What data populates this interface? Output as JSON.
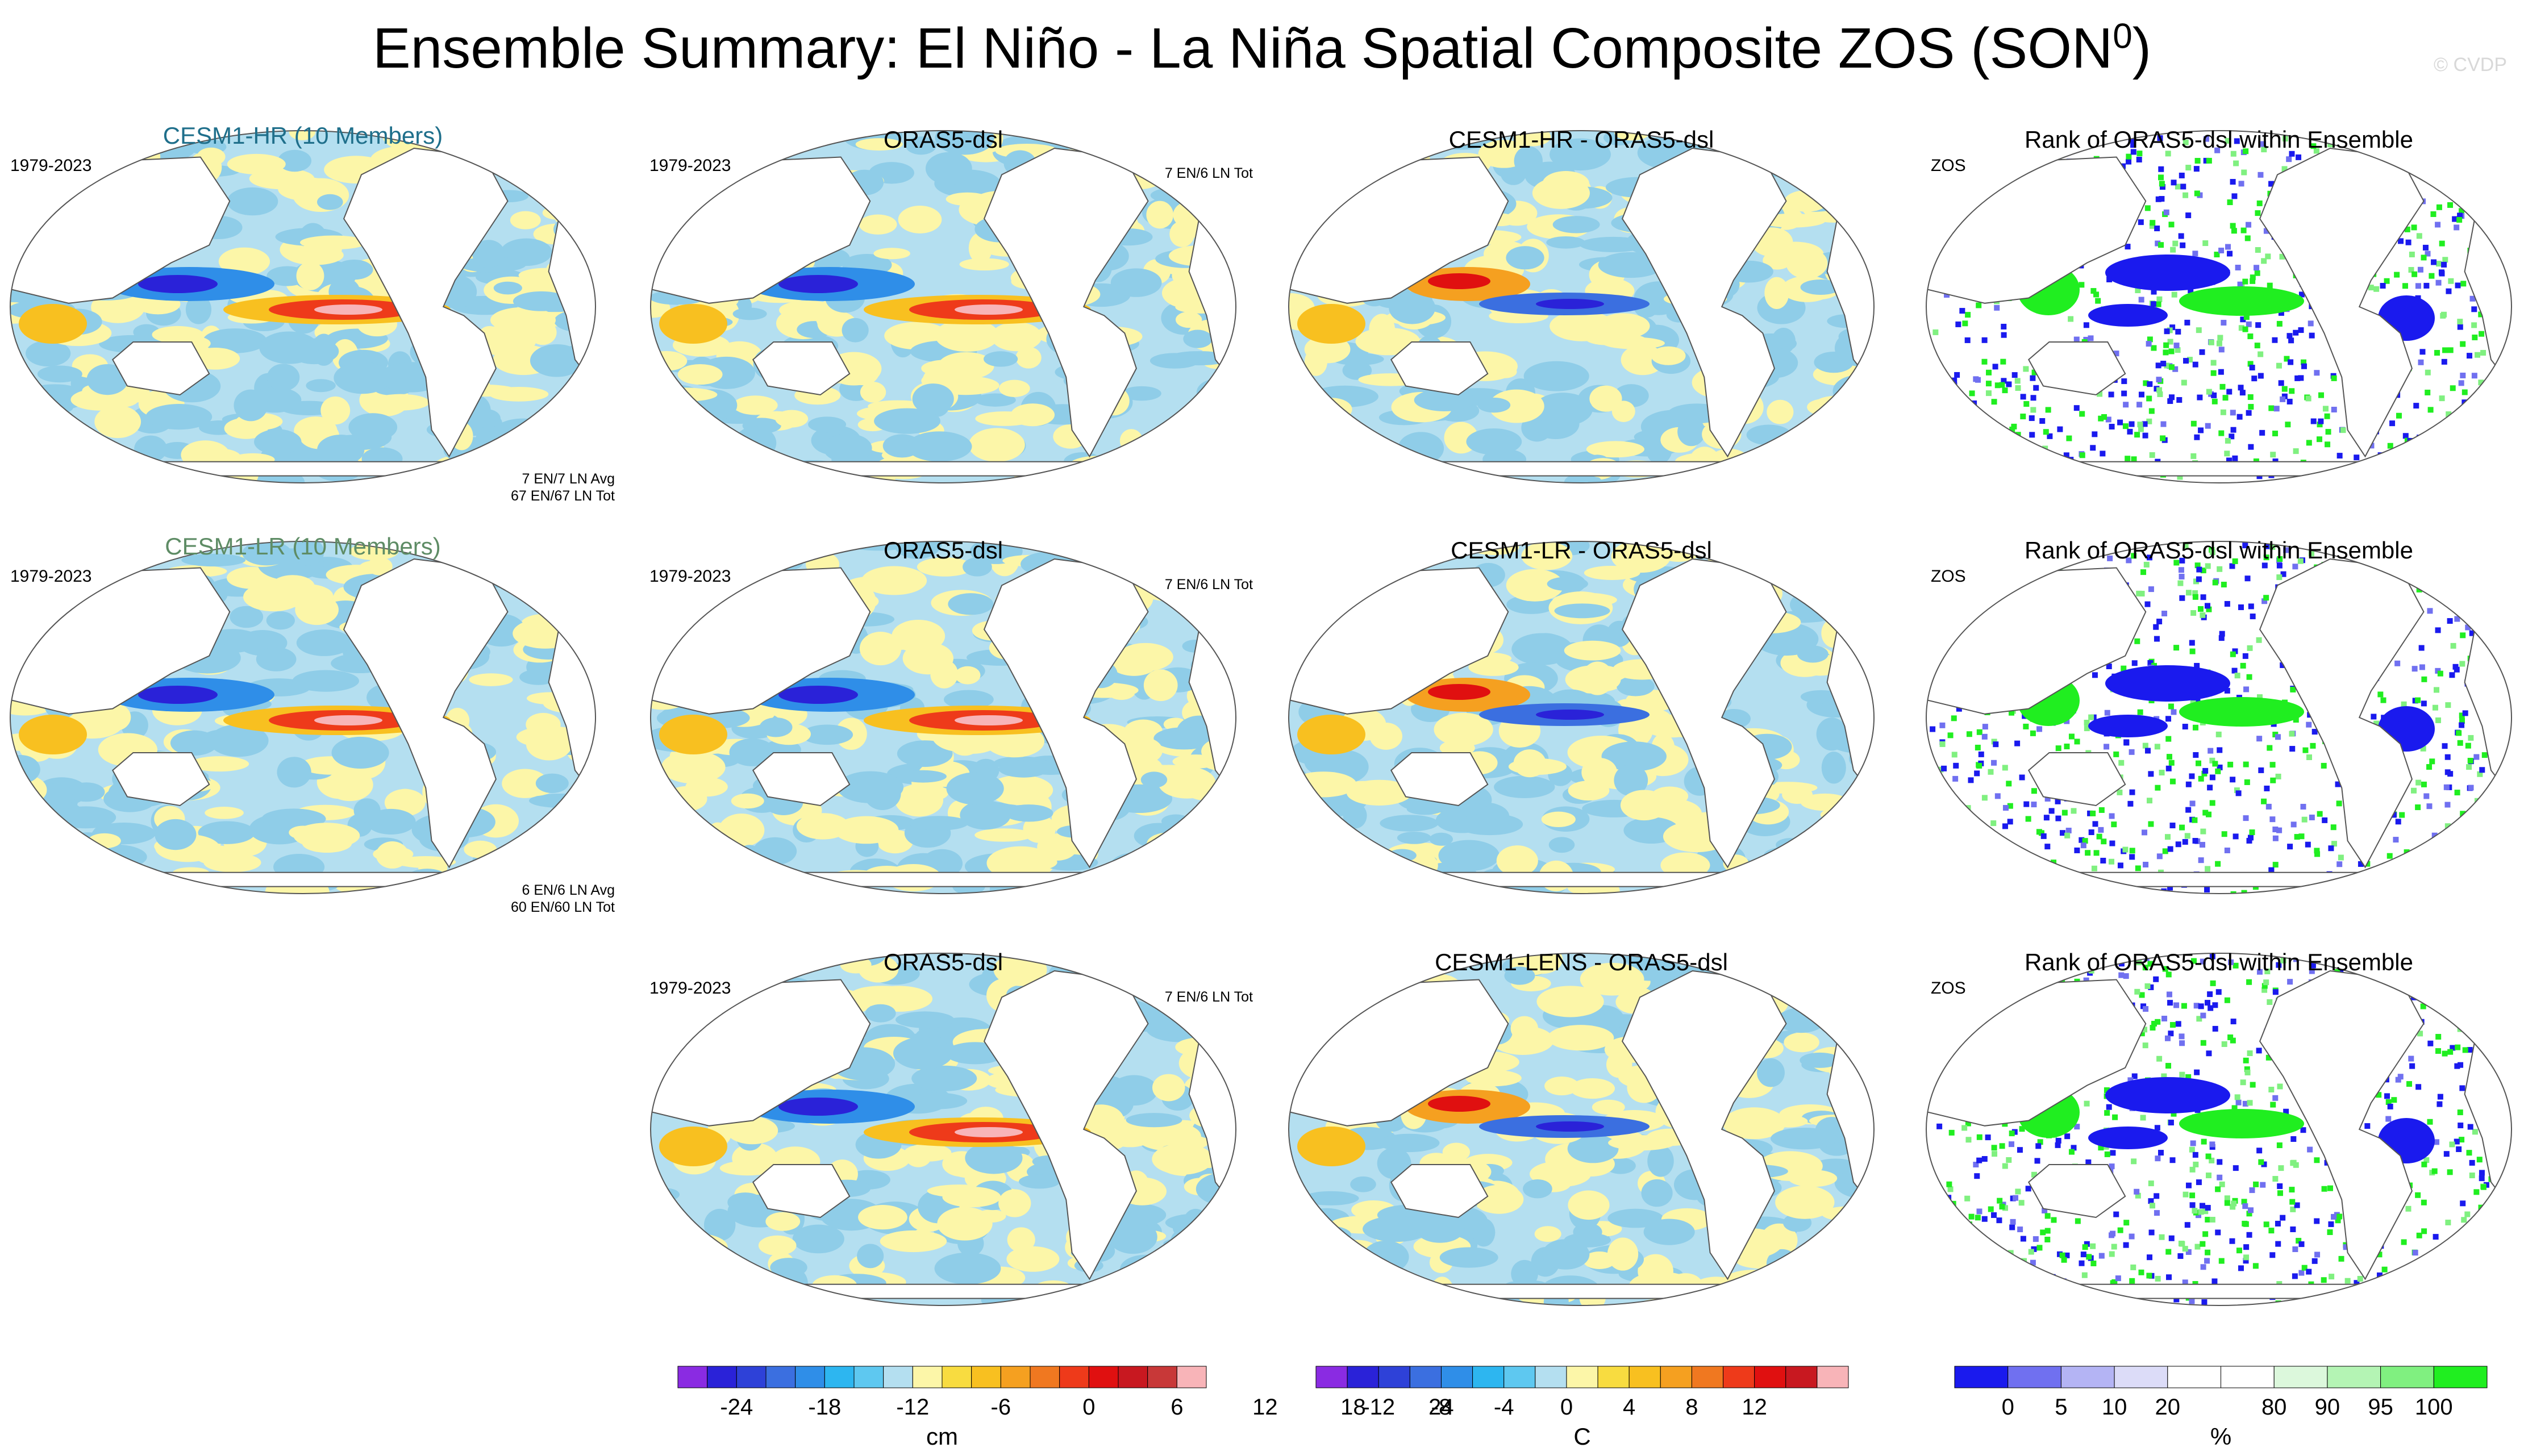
{
  "main_title": "Ensemble Summary: El Niño - La Niña Spatial Composite ZOS (SON",
  "main_title_sup": "0",
  "main_title_close": ")",
  "credit": "© CVDP",
  "rows": [
    {
      "model": {
        "title": "CESM1-HR (10 Members)",
        "title_color": "#1f6f8b",
        "period": "1979-2023",
        "stat1": "7 EN/7 LN Avg",
        "stat2": "67 EN/67 LN Tot"
      },
      "obs": {
        "title": "ORAS5-dsl",
        "period": "1979-2023",
        "stat": "7 EN/6 LN Tot"
      },
      "diff": {
        "title": "CESM1-HR - ORAS5-dsl"
      },
      "rank": {
        "title": "Rank of ORAS5-dsl within Ensemble",
        "label": "ZOS"
      }
    },
    {
      "model": {
        "title": "CESM1-LR (10 Members)",
        "title_color": "#5e8c65",
        "period": "1979-2023",
        "stat1": "6 EN/6 LN Avg",
        "stat2": "60 EN/60 LN Tot"
      },
      "obs": {
        "title": "ORAS5-dsl",
        "period": "1979-2023",
        "stat": "7 EN/6 LN Tot"
      },
      "diff": {
        "title": "CESM1-LR - ORAS5-dsl"
      },
      "rank": {
        "title": "Rank of ORAS5-dsl within Ensemble",
        "label": "ZOS"
      }
    },
    {
      "model": null,
      "obs": {
        "title": "ORAS5-dsl",
        "period": "1979-2023",
        "stat": "7 EN/6 LN Tot"
      },
      "diff": {
        "title": "CESM1-LENS - ORAS5-dsl"
      },
      "rank": {
        "title": "Rank of ORAS5-dsl within Ensemble",
        "label": "ZOS"
      }
    }
  ],
  "colorbars": [
    {
      "name": "anomaly-colorbar",
      "unit": "cm",
      "colors": [
        "#8a2be2",
        "#2a22d8",
        "#2e41d8",
        "#3b6fe0",
        "#2f8ee8",
        "#2db6f0",
        "#5ec8f0",
        "#b4dff0",
        "#fcf6a8",
        "#f8dc40",
        "#f8c020",
        "#f5a020",
        "#f07820",
        "#ee3a1a",
        "#e01010",
        "#c81820",
        "#c83838",
        "#f8b4b8"
      ],
      "ticks": [
        "-24",
        "-18",
        "-12",
        "-6",
        "0",
        "6",
        "12",
        "18",
        "24"
      ],
      "tick_boundaries": [
        2,
        5,
        8,
        11,
        14,
        17,
        20,
        23,
        26
      ]
    },
    {
      "name": "difference-colorbar",
      "unit": "C",
      "colors": [
        "#8a2be2",
        "#2a22d8",
        "#2e41d8",
        "#3b6fe0",
        "#2f8ee8",
        "#2db6f0",
        "#5ec8f0",
        "#b4dff0",
        "#fcf6a8",
        "#f8dc40",
        "#f8c020",
        "#f5a020",
        "#f07820",
        "#ee3a1a",
        "#e01010",
        "#c81820",
        "#f8b4b8"
      ],
      "ticks": [
        "-12",
        "-8",
        "-4",
        "0",
        "4",
        "8",
        "12"
      ],
      "tick_boundaries": [
        2,
        4,
        6,
        8,
        10,
        12,
        14
      ]
    },
    {
      "name": "rank-colorbar",
      "unit": "%",
      "colors": [
        "#1a1aee",
        "#7070f0",
        "#b4b4f4",
        "#dcdcf8",
        "#ffffff",
        "#ffffff",
        "#dcf8dc",
        "#b4f4b4",
        "#80f080",
        "#20ee20"
      ],
      "ticks": [
        "0",
        "5",
        "10",
        "20",
        "80",
        "90",
        "95",
        "100"
      ],
      "tick_boundaries": [
        1,
        2,
        3,
        4,
        6,
        7,
        8,
        9
      ]
    }
  ],
  "chart_data": {
    "type": "heatmap",
    "title": "Ensemble Summary: El Niño - La Niña Spatial Composite ZOS (SON0)",
    "panels": [
      {
        "row": 1,
        "col": 1,
        "title": "CESM1-HR (10 Members)",
        "field": "ZOS composite",
        "units": "cm",
        "range": [
          -27,
          27
        ]
      },
      {
        "row": 1,
        "col": 2,
        "title": "ORAS5-dsl",
        "field": "ZOS composite",
        "units": "cm",
        "range": [
          -27,
          27
        ]
      },
      {
        "row": 1,
        "col": 3,
        "title": "CESM1-HR - ORAS5-dsl",
        "field": "difference",
        "units": "C",
        "range": [
          -14,
          14
        ]
      },
      {
        "row": 1,
        "col": 4,
        "title": "Rank of ORAS5-dsl within Ensemble",
        "field": "rank",
        "units": "%",
        "range": [
          0,
          100
        ]
      },
      {
        "row": 2,
        "col": 1,
        "title": "CESM1-LR (10 Members)",
        "field": "ZOS composite",
        "units": "cm",
        "range": [
          -27,
          27
        ]
      },
      {
        "row": 2,
        "col": 2,
        "title": "ORAS5-dsl",
        "field": "ZOS composite",
        "units": "cm",
        "range": [
          -27,
          27
        ]
      },
      {
        "row": 2,
        "col": 3,
        "title": "CESM1-LR - ORAS5-dsl",
        "field": "difference",
        "units": "C",
        "range": [
          -14,
          14
        ]
      },
      {
        "row": 2,
        "col": 4,
        "title": "Rank of ORAS5-dsl within Ensemble",
        "field": "rank",
        "units": "%",
        "range": [
          0,
          100
        ]
      },
      {
        "row": 3,
        "col": 2,
        "title": "ORAS5-dsl",
        "field": "ZOS composite",
        "units": "cm",
        "range": [
          -27,
          27
        ]
      },
      {
        "row": 3,
        "col": 3,
        "title": "CESM1-LENS - ORAS5-dsl",
        "field": "difference",
        "units": "C",
        "range": [
          -14,
          14
        ]
      },
      {
        "row": 3,
        "col": 4,
        "title": "Rank of ORAS5-dsl within Ensemble",
        "field": "rank",
        "units": "%",
        "range": [
          0,
          100
        ]
      }
    ]
  }
}
